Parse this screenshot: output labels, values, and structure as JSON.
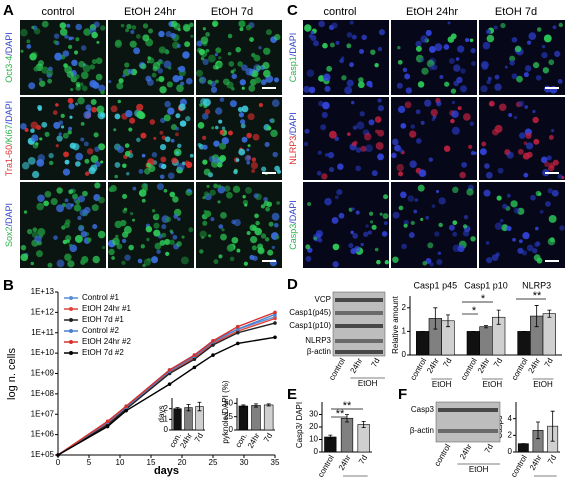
{
  "panels": {
    "A": {
      "label": "A",
      "columns": [
        "control",
        "EtOH 24hr",
        "EtOH 7d"
      ],
      "rows": [
        [
          {
            "text": "Oct3-4",
            "color": "#2bb24c"
          },
          {
            "text": "/DAPI",
            "color": "#3344cc"
          }
        ],
        [
          {
            "text": "Tra1-60",
            "color": "#e03030"
          },
          {
            "text": "/Ki67",
            "color": "#2bb24c"
          },
          {
            "text": "/DAPI",
            "color": "#3344cc"
          }
        ],
        [
          {
            "text": "Sox2",
            "color": "#2bb24c"
          },
          {
            "text": "/DAPI",
            "color": "#3344cc"
          }
        ]
      ]
    },
    "C": {
      "label": "C",
      "columns": [
        "control",
        "EtOH 24hr",
        "EtOH 7d"
      ],
      "rows": [
        [
          {
            "text": "Casp1",
            "color": "#2bb24c"
          },
          {
            "text": "/DAPI",
            "color": "#3344cc"
          }
        ],
        [
          {
            "text": "NLRP3",
            "color": "#e03030"
          },
          {
            "text": "/DAPI",
            "color": "#3344cc"
          }
        ],
        [
          {
            "text": "Casp3",
            "color": "#2bb24c"
          },
          {
            "text": "/DAPI",
            "color": "#3344cc"
          }
        ]
      ]
    },
    "B": {
      "label": "B"
    },
    "D": {
      "label": "D",
      "blot_labels": [
        "VCP",
        "Casp1(p45)",
        "Casp1(p10)",
        "NLRP3",
        "β-actin"
      ],
      "lanes": [
        "control",
        "24hr",
        "7d"
      ],
      "lane_group": "EtOH"
    },
    "E": {
      "label": "E"
    },
    "F": {
      "label": "F",
      "blot_labels": [
        "Casp3",
        "β-actin"
      ],
      "lanes": [
        "control",
        "24hr",
        "7d"
      ],
      "lane_group": "EtOH"
    }
  },
  "chart_data": [
    {
      "type": "line",
      "xlabel": "days",
      "ylabel": "log n. cells",
      "log_y": true,
      "x": [
        0,
        8,
        11,
        18,
        22,
        25,
        29,
        35
      ],
      "xlim": [
        0,
        35
      ],
      "xticks": [
        0,
        5,
        10,
        15,
        20,
        25,
        30,
        35
      ],
      "ylim": [
        100000,
        10000000000000
      ],
      "yticks": [
        {
          "value": 100000,
          "label": "1E+05"
        },
        {
          "value": 1000000,
          "label": "1E+06"
        },
        {
          "value": 10000000,
          "label": "1E+07"
        },
        {
          "value": 100000000,
          "label": "1E+08"
        },
        {
          "value": 1000000000,
          "label": "1E+09"
        },
        {
          "value": 10000000000,
          "label": "1E+10"
        },
        {
          "value": 100000000000,
          "label": "1E+11"
        },
        {
          "value": 1000000000000,
          "label": "1E+12"
        },
        {
          "value": 10000000000000,
          "label": "1E+13"
        }
      ],
      "legend": "top-left",
      "series": [
        {
          "name": "Control #1",
          "color": "#5b8fd6",
          "values": [
            100000,
            4000000,
            25000000,
            1500000000,
            8000000000,
            40000000000,
            150000000000,
            600000000000
          ]
        },
        {
          "name": "EtOH 24hr #1",
          "color": "#e0443c",
          "values": [
            100000,
            3500000,
            20000000,
            1200000000,
            6000000000,
            30000000000,
            120000000000,
            500000000000
          ]
        },
        {
          "name": "EtOH 7d #1",
          "color": "#222222",
          "values": [
            100000,
            3000000,
            18000000,
            1000000000,
            5000000000,
            25000000000,
            100000000000,
            300000000000
          ]
        },
        {
          "name": "Control #2",
          "color": "#4a7fcc",
          "values": [
            100000,
            4000000,
            22000000,
            1300000000,
            7000000000,
            35000000000,
            150000000000,
            800000000000
          ]
        },
        {
          "name": "EtOH 24hr #2",
          "color": "#d8302a",
          "values": [
            100000,
            4500000,
            25000000,
            1500000000,
            8000000000,
            40000000000,
            200000000000,
            1000000000000
          ]
        },
        {
          "name": "EtOH 7d #2",
          "color": "#000000",
          "values": [
            100000,
            2500000,
            15000000,
            300000000,
            2000000000,
            8000000000,
            30000000000,
            60000000000
          ]
        }
      ]
    },
    {
      "type": "bar",
      "ylabel": "days",
      "categories": [
        "con.",
        "24hr",
        "7d"
      ],
      "values": [
        2,
        2.1,
        2.2
      ],
      "errors": [
        0.1,
        0.3,
        0.4
      ],
      "colors": [
        "#111111",
        "#808080",
        "#d0d0d0"
      ],
      "ylim": [
        0,
        3
      ],
      "yticks": [
        0,
        1,
        2
      ]
    },
    {
      "type": "bar",
      "ylabel": "pyknolo/DAPI (%)",
      "categories": [
        "con.",
        "24hr",
        "7d"
      ],
      "values": [
        45,
        46,
        47
      ],
      "errors": [
        2,
        3,
        2
      ],
      "colors": [
        "#111111",
        "#808080",
        "#d0d0d0"
      ],
      "ylim": [
        0,
        60
      ],
      "yticks": [
        0,
        25,
        50
      ]
    },
    {
      "type": "grouped_bar",
      "ylabel": "Relative amount",
      "categories": [
        "Casp1 p45",
        "Casp1 p10",
        "NLRP3"
      ],
      "group_label": "EtOH",
      "ylim": [
        0,
        2.5
      ],
      "yticks": [
        0,
        1,
        2
      ],
      "annotations": [
        "*",
        "*",
        "**"
      ],
      "series": [
        {
          "name": "control",
          "color": "#111111",
          "values": [
            1,
            1,
            1
          ],
          "errors": [
            0,
            0,
            0
          ]
        },
        {
          "name": "24hr",
          "color": "#808080",
          "values": [
            1.55,
            1.2,
            1.65
          ],
          "errors": [
            0.45,
            0.05,
            0.45
          ]
        },
        {
          "name": "7d",
          "color": "#d0d0d0",
          "values": [
            1.45,
            1.6,
            1.75
          ],
          "errors": [
            0.25,
            0.3,
            0.15
          ]
        }
      ]
    },
    {
      "type": "bar",
      "ylabel": "Casp3/ DAPI",
      "categories": [
        "control",
        "24hr",
        "7d"
      ],
      "group_label": "EtOH",
      "values": [
        12,
        27,
        22
      ],
      "errors": [
        1.5,
        3,
        2.5
      ],
      "colors": [
        "#111111",
        "#808080",
        "#d0d0d0"
      ],
      "ylim": [
        0,
        40
      ],
      "yticks": [
        0,
        10,
        20,
        30
      ],
      "annotations": [
        "**",
        "**"
      ]
    },
    {
      "type": "bar",
      "ylabel": "Casp3",
      "categories": [
        "control",
        "24hr",
        "7d"
      ],
      "group_label": "EtOH",
      "values": [
        1,
        2.6,
        3.1
      ],
      "errors": [
        0,
        1,
        1.8
      ],
      "colors": [
        "#111111",
        "#808080",
        "#d0d0d0"
      ],
      "ylim": [
        0,
        6
      ],
      "yticks": [
        0,
        2,
        4
      ]
    }
  ]
}
